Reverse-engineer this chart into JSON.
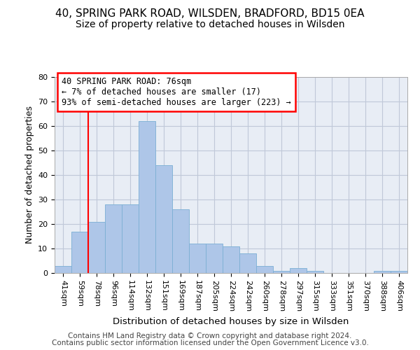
{
  "title1": "40, SPRING PARK ROAD, WILSDEN, BRADFORD, BD15 0EA",
  "title2": "Size of property relative to detached houses in Wilsden",
  "xlabel": "Distribution of detached houses by size in Wilsden",
  "ylabel": "Number of detached properties",
  "categories": [
    "41sqm",
    "59sqm",
    "78sqm",
    "96sqm",
    "114sqm",
    "132sqm",
    "151sqm",
    "169sqm",
    "187sqm",
    "205sqm",
    "224sqm",
    "242sqm",
    "260sqm",
    "278sqm",
    "297sqm",
    "315sqm",
    "333sqm",
    "351sqm",
    "370sqm",
    "388sqm",
    "406sqm"
  ],
  "values": [
    3,
    17,
    21,
    28,
    28,
    62,
    44,
    26,
    12,
    12,
    11,
    8,
    3,
    1,
    2,
    1,
    0,
    0,
    0,
    1,
    1
  ],
  "bar_color": "#aec6e8",
  "bar_edge_color": "#7bafd4",
  "red_line_index": 2,
  "annotation_line1": "40 SPRING PARK ROAD: 76sqm",
  "annotation_line2": "← 7% of detached houses are smaller (17)",
  "annotation_line3": "93% of semi-detached houses are larger (223) →",
  "annotation_box_color": "white",
  "annotation_box_edge_color": "red",
  "red_line_color": "red",
  "ylim": [
    0,
    80
  ],
  "yticks": [
    0,
    10,
    20,
    30,
    40,
    50,
    60,
    70,
    80
  ],
  "grid_color": "#c0c8d8",
  "bg_color": "#e8edf5",
  "footer1": "Contains HM Land Registry data © Crown copyright and database right 2024.",
  "footer2": "Contains public sector information licensed under the Open Government Licence v3.0.",
  "title1_fontsize": 11,
  "title2_fontsize": 10,
  "xlabel_fontsize": 9.5,
  "ylabel_fontsize": 9,
  "tick_fontsize": 8,
  "annot_fontsize": 8.5,
  "footer_fontsize": 7.5
}
